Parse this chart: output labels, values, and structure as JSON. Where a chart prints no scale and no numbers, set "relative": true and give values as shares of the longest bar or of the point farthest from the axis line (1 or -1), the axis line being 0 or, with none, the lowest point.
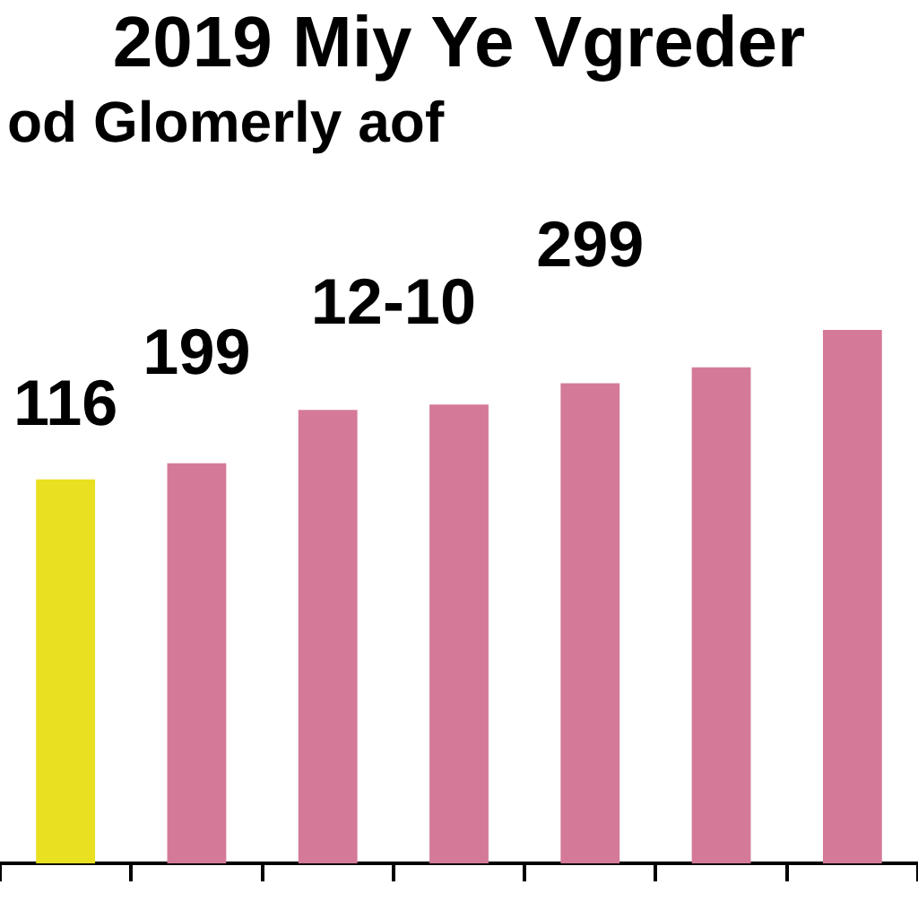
{
  "chart_data": {
    "type": "bar",
    "title": "2019 Miy Ye Vgreder",
    "subtitle": "od Glomerly aof",
    "categories": [
      null,
      null,
      null,
      null,
      null,
      null,
      null
    ],
    "values": [
      0.72,
      0.75,
      0.85,
      0.86,
      0.9,
      0.93,
      1
    ],
    "colors": [
      "#e8e020",
      "#d47a98",
      "#d47a98",
      "#d47a98",
      "#d47a98",
      "#d47a98",
      "#d47a98"
    ],
    "relative": true,
    "annotations": [
      "116",
      "199",
      "12-10",
      "299"
    ],
    "grid": false,
    "legend": false
  }
}
